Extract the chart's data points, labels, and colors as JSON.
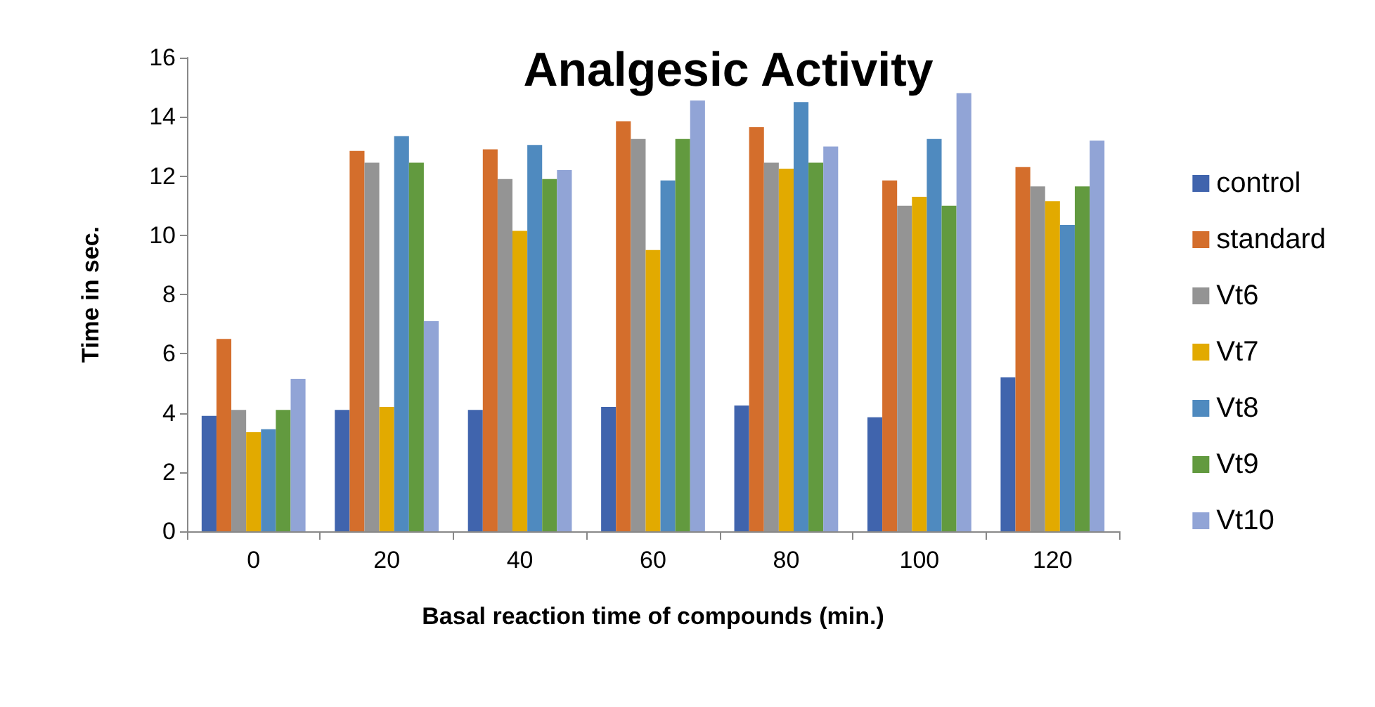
{
  "chart_data": {
    "type": "bar",
    "title": "Analgesic Activity",
    "xlabel": "Basal reaction time of compounds (min.)",
    "ylabel": "Time in sec.",
    "categories": [
      "0",
      "20",
      "40",
      "60",
      "80",
      "100",
      "120"
    ],
    "series": [
      {
        "name": "control",
        "color": "#4064ad",
        "values": [
          3.9,
          4.1,
          4.1,
          4.2,
          4.25,
          3.85,
          5.2
        ]
      },
      {
        "name": "standard",
        "color": "#d46e2c",
        "values": [
          6.5,
          12.85,
          12.9,
          13.85,
          13.65,
          11.85,
          12.3
        ]
      },
      {
        "name": "Vt6",
        "color": "#949494",
        "values": [
          4.1,
          12.45,
          11.9,
          13.25,
          12.45,
          11.0,
          11.65
        ]
      },
      {
        "name": "Vt7",
        "color": "#e2aa00",
        "values": [
          3.35,
          4.2,
          10.15,
          9.5,
          12.25,
          11.3,
          11.15
        ]
      },
      {
        "name": "Vt8",
        "color": "#4f8abf",
        "values": [
          3.45,
          13.35,
          13.05,
          11.85,
          14.5,
          13.25,
          10.35
        ]
      },
      {
        "name": "Vt9",
        "color": "#629a3f",
        "values": [
          4.1,
          12.45,
          11.9,
          13.25,
          12.45,
          11.0,
          11.65
        ]
      },
      {
        "name": "Vt10",
        "color": "#91a4d6",
        "values": [
          5.15,
          7.1,
          12.2,
          14.55,
          13.0,
          14.8,
          13.2
        ]
      }
    ],
    "ylim": [
      0,
      16
    ],
    "yticks": [
      0,
      2,
      4,
      6,
      8,
      10,
      12,
      14,
      16
    ],
    "grid": false,
    "legend": "right"
  }
}
